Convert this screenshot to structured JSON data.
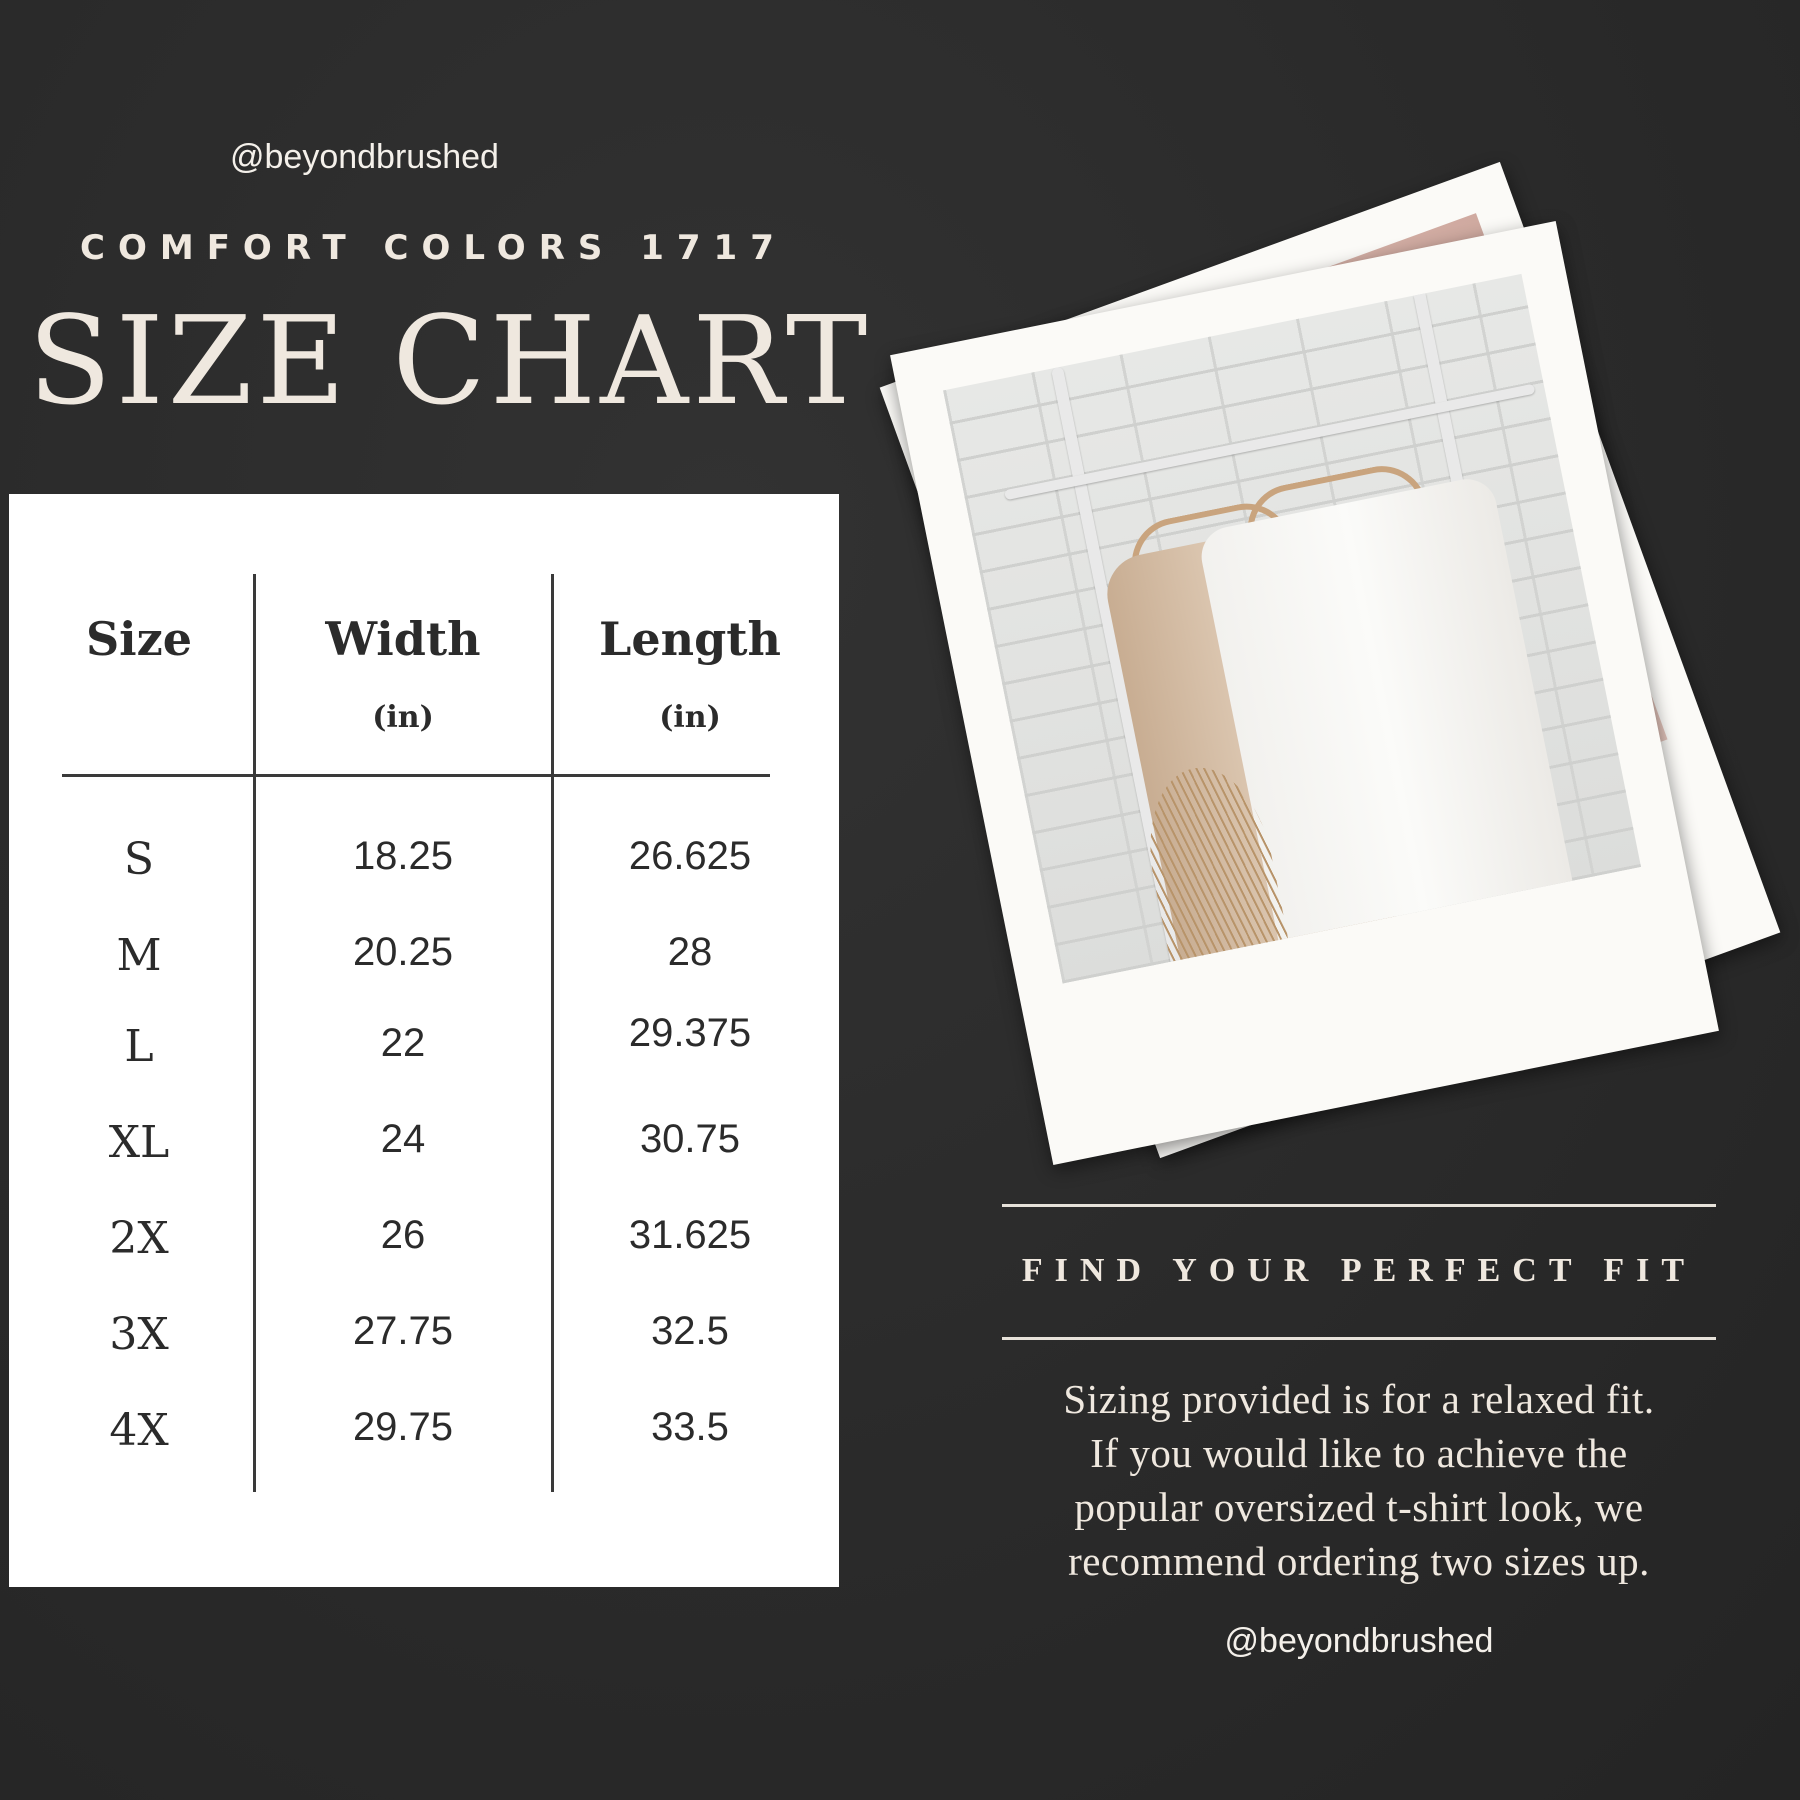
{
  "header": {
    "handle": "@beyondbrushed",
    "brand": "COMFORT COLORS 1717",
    "title": "SIZE CHART"
  },
  "table": {
    "columns": [
      {
        "label": "Size",
        "unit": ""
      },
      {
        "label": "Width",
        "unit": "(in)"
      },
      {
        "label": "Length",
        "unit": "(in)"
      }
    ],
    "rows": [
      {
        "size": "S",
        "width": "18.25",
        "length": "26.625"
      },
      {
        "size": "M",
        "width": "20.25",
        "length": "28"
      },
      {
        "size": "L",
        "width": "22",
        "length": "29.375"
      },
      {
        "size": "XL",
        "width": "24",
        "length": "30.75"
      },
      {
        "size": "2X",
        "width": "26",
        "length": "31.625"
      },
      {
        "size": "3X",
        "width": "27.75",
        "length": "32.5"
      },
      {
        "size": "4X",
        "width": "29.75",
        "length": "33.5"
      }
    ]
  },
  "fit": {
    "heading": "FIND YOUR PERFECT FIT",
    "note_lines": [
      "Sizing provided is for a relaxed fit.",
      "If you would like to achieve the",
      "popular oversized t-shirt look, we",
      "recommend ordering two sizes up."
    ],
    "handle": "@beyondbrushed"
  },
  "colors": {
    "background": "#2a2a2a",
    "text_light": "#efe8df",
    "table_text": "#2b2b2b",
    "card": "#ffffff"
  }
}
